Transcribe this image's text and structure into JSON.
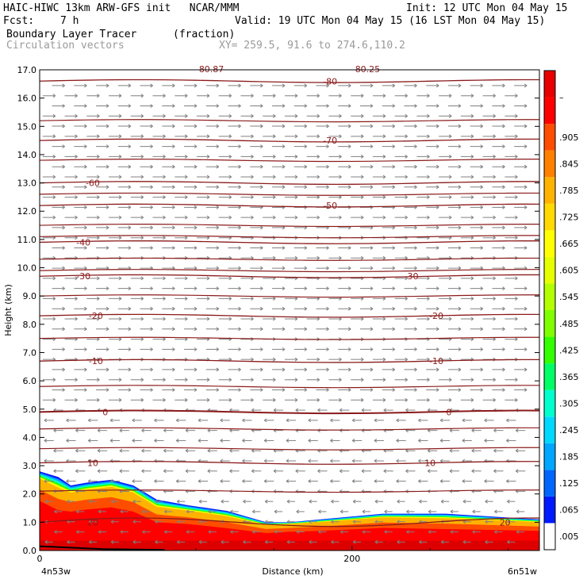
{
  "header": {
    "left_line1": "HAIC-HIWC 13km ARW-GFS init   NCAR/MMM",
    "left_line2_label": "Fcst:",
    "left_line2_value": "7 h",
    "init": "Init: 12 UTC Mon 04 May 15",
    "valid": "Valid: 19 UTC Mon 04 May 15 (16 LST Mon 04 May 15)",
    "field": "Boundary Layer Tracer",
    "field_units": "(fraction)",
    "vectors_label": "Circulation vectors",
    "xy_label": "XY= 259.5, 91.6 to 274.6,110.2"
  },
  "colors": {
    "contour": "#8b1a1a",
    "vector": "#808080",
    "frame": "#000000"
  },
  "chart_data": {
    "type": "heatmap",
    "ylabel": "Height (km)",
    "xlabel": "Distance (km)",
    "x_start_label": "4n53w",
    "x_end_label": "6n51w",
    "xlim": [
      0,
      320
    ],
    "ylim": [
      0,
      17
    ],
    "y_ticks": [
      "0.0",
      "1.0",
      "2.0",
      "3.0",
      "4.0",
      "5.0",
      "6.0",
      "7.0",
      "8.0",
      "9.0",
      "10.0",
      "11.0",
      "12.0",
      "13.0",
      "14.0",
      "15.0",
      "16.0",
      "17.0"
    ],
    "x_ticks": [
      {
        "value": 0,
        "label": "0"
      },
      {
        "value": 200,
        "label": "200"
      }
    ],
    "colorbar_levels": [
      ".005",
      ".065",
      ".125",
      ".185",
      ".245",
      ".305",
      ".365",
      ".425",
      ".485",
      ".545",
      ".605",
      ".665",
      ".725",
      ".785",
      ".845",
      ".905",
      "–"
    ],
    "colorbar_colors": [
      "#ffffff",
      "#0019ff",
      "#0066ff",
      "#00a6ff",
      "#00d9ff",
      "#00ffcc",
      "#00ff66",
      "#33ff00",
      "#80ff00",
      "#b3ff00",
      "#e6ff00",
      "#ffff00",
      "#ffd900",
      "#ffb300",
      "#ff8000",
      "#ff4d00",
      "#ff0000",
      "#e60000"
    ],
    "temperature_contours": [
      {
        "label": "-80",
        "y": 16.6
      },
      {
        "label": "-70",
        "y": 14.5
      },
      {
        "label": "-60",
        "y": 13.0
      },
      {
        "label": "-50",
        "y": 12.2
      },
      {
        "label": "-40",
        "y": 10.9
      },
      {
        "label": "-30",
        "y": 9.7
      },
      {
        "label": "-20",
        "y": 8.3
      },
      {
        "label": "-10",
        "y": 6.7
      },
      {
        "label": "0",
        "y": 4.9
      },
      {
        "label": "10",
        "y": 3.1
      },
      {
        "label": "20",
        "y": 1.0
      }
    ],
    "contour_label_xs": {
      "-80": [
        186
      ],
      "-70": [
        186
      ],
      "-60": [
        34
      ],
      "-50": [
        186
      ],
      "-40": [
        28
      ],
      "-30": [
        28,
        238
      ],
      "-20": [
        36,
        254
      ],
      "-10": [
        36,
        254
      ],
      "0": [
        42,
        262
      ],
      "10": [
        34,
        250
      ],
      "20": [
        34,
        298
      ]
    },
    "extra_contour_levels": [
      17.2,
      15.2,
      13.8,
      12.6,
      11.5,
      11.1,
      10.3,
      9.9,
      9.0,
      7.5,
      5.8,
      4.3,
      3.6,
      2.1
    ],
    "top_partial_labels": [
      "80.87",
      "80.25"
    ],
    "tracer_top_profile": [
      {
        "x": 0,
        "top": 2.8,
        "inner": 2.4
      },
      {
        "x": 12,
        "top": 2.6,
        "inner": 2.0
      },
      {
        "x": 20,
        "top": 2.3,
        "inner": 1.9
      },
      {
        "x": 30,
        "top": 2.4,
        "inner": 2.0
      },
      {
        "x": 46,
        "top": 2.5,
        "inner": 2.1
      },
      {
        "x": 60,
        "top": 2.3,
        "inner": 1.9
      },
      {
        "x": 75,
        "top": 1.8,
        "inner": 1.4
      },
      {
        "x": 95,
        "top": 1.6,
        "inner": 1.3
      },
      {
        "x": 120,
        "top": 1.4,
        "inner": 1.1
      },
      {
        "x": 145,
        "top": 1.0,
        "inner": 0.85
      },
      {
        "x": 160,
        "top": 1.0,
        "inner": 0.9
      },
      {
        "x": 180,
        "top": 1.1,
        "inner": 0.95
      },
      {
        "x": 220,
        "top": 1.3,
        "inner": 1.1
      },
      {
        "x": 260,
        "top": 1.3,
        "inner": 1.05
      },
      {
        "x": 290,
        "top": 1.2,
        "inner": 1.0
      },
      {
        "x": 320,
        "top": 1.1,
        "inner": 0.95
      }
    ],
    "wind": {
      "upper_direction": "east",
      "lower_direction": "west",
      "reversal_height_km": 5.0
    }
  }
}
